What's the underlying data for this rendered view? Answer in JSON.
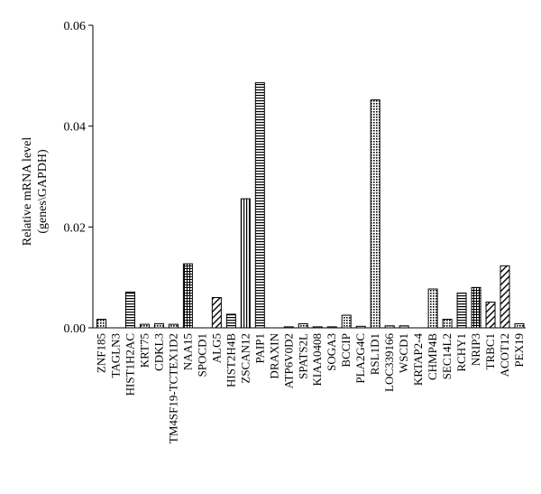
{
  "chart_data": {
    "type": "bar",
    "title": "",
    "xlabel": "",
    "ylabel": "Relative mRNA level",
    "ylabel_line2": "(genes\\GAPDH)",
    "ylim": [
      0,
      0.06
    ],
    "yticks": [
      "0.00",
      "0.02",
      "0.04",
      "0.06"
    ],
    "grid": false,
    "legend": "none",
    "categories": [
      "ZNF185",
      "TAGLN3",
      "HIST1H2AC",
      "KRT75",
      "CDKL3",
      "TM4SF19-TCTEX1D2",
      "NAA15",
      "SPOCD1",
      "ALG5",
      "HIST2H4B",
      "ZSCAN12",
      "PAIP1",
      "DRAXIN",
      "ATP6V0D2",
      "SPATS2L",
      "KIAA0408",
      "SOGA3",
      "BCCIP",
      "PLA2G4C",
      "RSL1D1",
      "LOC339166",
      "WSCD1",
      "KRTAP2-4",
      "CHMP4B",
      "SEC14L2",
      "RCHY1",
      "NRIP3",
      "TRBC1",
      "ACOT12",
      "PEX19"
    ],
    "values": [
      0.0017,
      0.0,
      0.0071,
      0.0007,
      0.0008,
      0.0007,
      0.0127,
      0.0,
      0.006,
      0.0027,
      0.0256,
      0.0486,
      0.0,
      0.0002,
      0.0008,
      0.0002,
      0.0002,
      0.0025,
      0.0003,
      0.0452,
      0.0004,
      0.0004,
      0.0,
      0.0077,
      0.0017,
      0.0069,
      0.008,
      0.0051,
      0.0123,
      0.0008
    ],
    "patterns": [
      "dots",
      "none",
      "hlines",
      "dots",
      "dots",
      "dots",
      "grid",
      "none",
      "diag",
      "hlines",
      "vlines",
      "hlines",
      "none",
      "dots",
      "dots",
      "dots",
      "dots",
      "dots",
      "dots",
      "dots",
      "dots",
      "dots",
      "none",
      "dots",
      "dots",
      "hlines",
      "grid",
      "diag",
      "diag",
      "dots"
    ]
  }
}
